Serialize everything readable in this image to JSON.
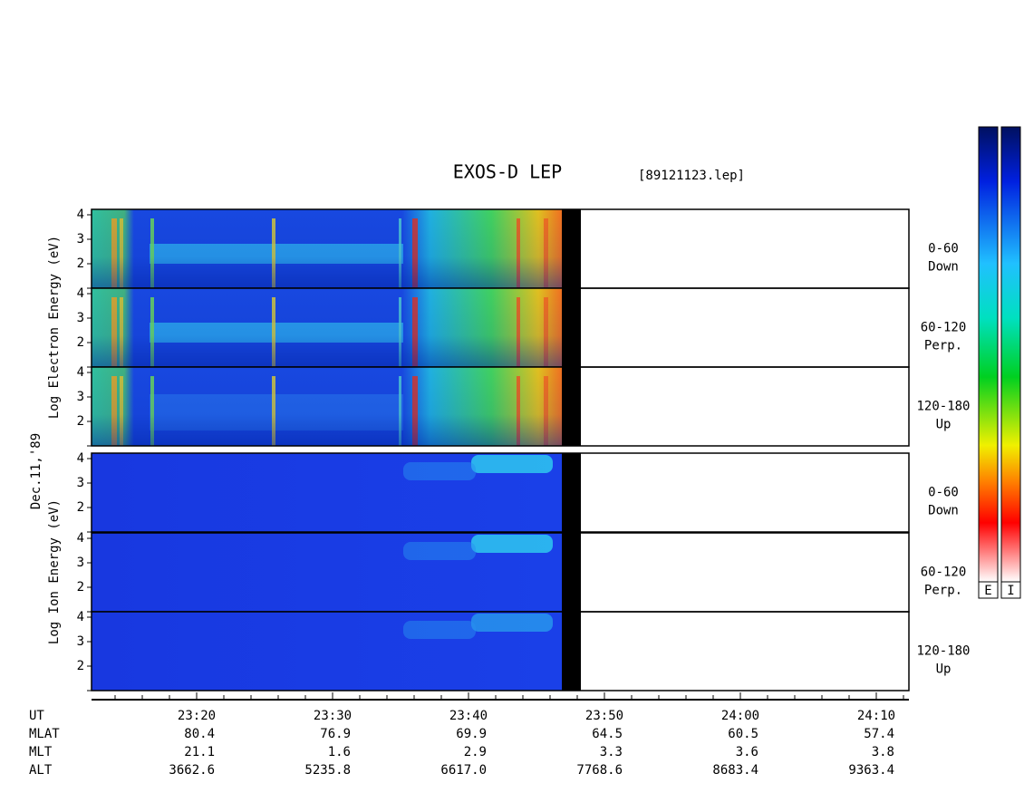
{
  "header": {
    "title": "EXOS-D LEP",
    "file": "[89121123.lep]"
  },
  "date": "Dec.11,'89",
  "groups": [
    {
      "label": "Log Electron Energy (eV)"
    },
    {
      "label": "Log Ion Energy (eV)"
    }
  ],
  "panels": [
    {
      "species": "electron",
      "range": "0-60",
      "direction": "Down",
      "yticks": [
        2,
        3,
        4
      ]
    },
    {
      "species": "electron",
      "range": "60-120",
      "direction": "Perp.",
      "yticks": [
        2,
        3,
        4
      ]
    },
    {
      "species": "electron",
      "range": "120-180",
      "direction": "Up",
      "yticks": [
        2,
        3,
        4
      ]
    },
    {
      "species": "ion",
      "range": "0-60",
      "direction": "Down",
      "yticks": [
        2,
        3,
        4
      ]
    },
    {
      "species": "ion",
      "range": "60-120",
      "direction": "Perp.",
      "yticks": [
        2,
        3,
        4
      ]
    },
    {
      "species": "ion",
      "range": "120-180",
      "direction": "Up",
      "yticks": [
        2,
        3,
        4
      ]
    }
  ],
  "axis": {
    "row_labels": [
      "UT",
      "MLAT",
      "MLT",
      "ALT"
    ],
    "columns": [
      {
        "ut": "23:20",
        "mlat": "80.4",
        "mlt": "21.1",
        "alt": "3662.6"
      },
      {
        "ut": "23:30",
        "mlat": "76.9",
        "mlt": "1.6",
        "alt": "5235.8"
      },
      {
        "ut": "23:40",
        "mlat": "69.9",
        "mlt": "2.9",
        "alt": "6617.0"
      },
      {
        "ut": "23:50",
        "mlat": "64.5",
        "mlt": "3.3",
        "alt": "7768.6"
      },
      {
        "ut": "24:00",
        "mlat": "60.5",
        "mlt": "3.6",
        "alt": "8683.4"
      },
      {
        "ut": "24:10",
        "mlat": "57.4",
        "mlt": "3.8",
        "alt": "9363.4"
      }
    ]
  },
  "colorbars": [
    "E",
    "I"
  ]
}
